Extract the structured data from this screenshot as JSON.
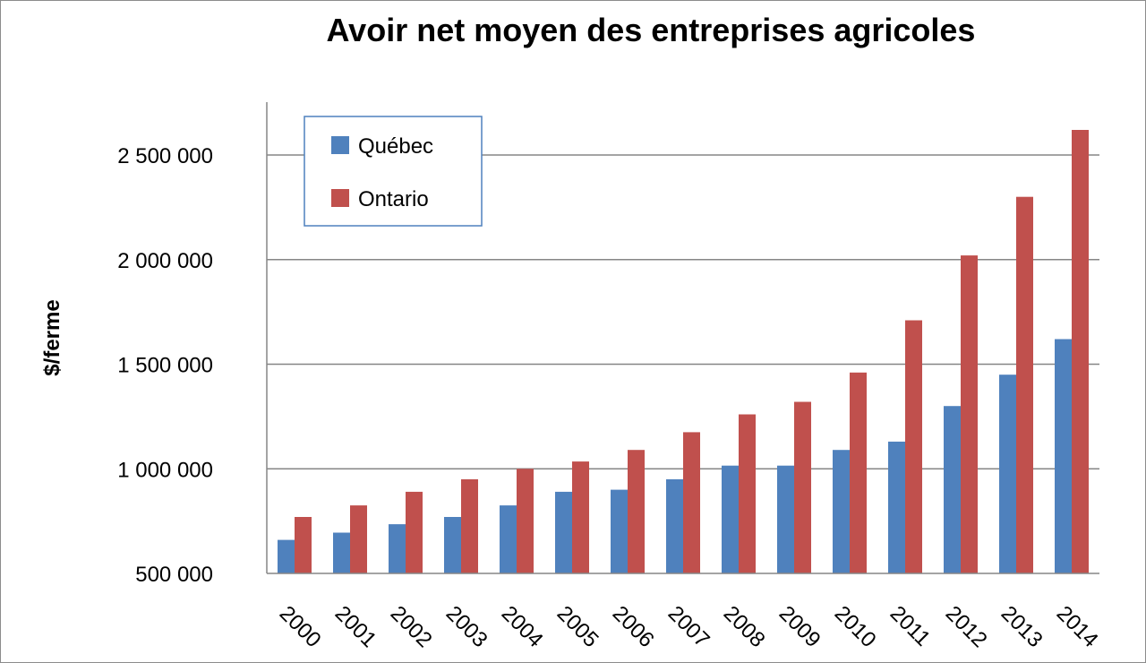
{
  "chart_data": {
    "type": "bar",
    "title": "Avoir net moyen des entreprises agricoles",
    "xlabel": "",
    "ylabel": "$/ferme",
    "ylim": [
      500000,
      2750000
    ],
    "y_ticks": [
      {
        "value": 500000,
        "label": "500 000"
      },
      {
        "value": 1000000,
        "label": "1 000 000"
      },
      {
        "value": 1500000,
        "label": "1 500 000"
      },
      {
        "value": 2000000,
        "label": "2 000 000"
      },
      {
        "value": 2500000,
        "label": "2 500 000"
      }
    ],
    "categories": [
      "2000",
      "2001",
      "2002",
      "2003",
      "2004",
      "2005",
      "2006",
      "2007",
      "2008",
      "2009",
      "2010",
      "2011",
      "2012",
      "2013",
      "2014"
    ],
    "series": [
      {
        "name": "Québec",
        "color": "#4f81bd",
        "values": [
          660000,
          695000,
          735000,
          770000,
          825000,
          890000,
          900000,
          950000,
          1015000,
          1015000,
          1090000,
          1130000,
          1300000,
          1450000,
          1620000
        ]
      },
      {
        "name": "Ontario",
        "color": "#c0504d",
        "values": [
          770000,
          825000,
          890000,
          950000,
          1000000,
          1035000,
          1090000,
          1175000,
          1260000,
          1320000,
          1460000,
          1710000,
          2020000,
          2300000,
          2620000
        ]
      }
    ],
    "grid": true,
    "legend": "top-left"
  }
}
